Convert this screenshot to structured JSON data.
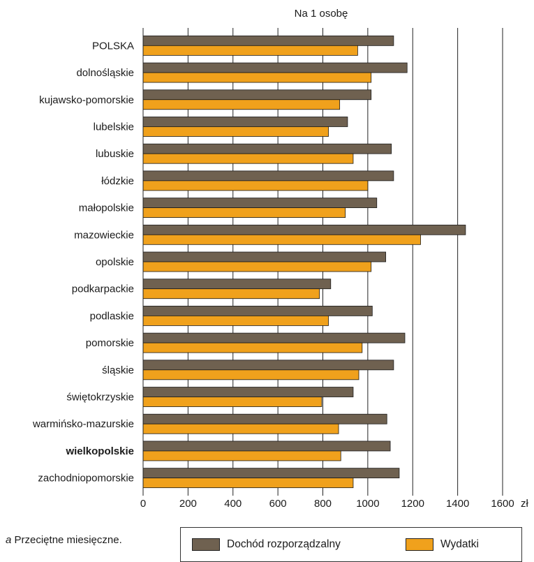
{
  "chart_data": {
    "type": "bar",
    "orientation": "horizontal",
    "title": "Na 1 osobę",
    "unit": "zł",
    "xlim": [
      0,
      1600
    ],
    "xticks": [
      0,
      200,
      400,
      600,
      800,
      1000,
      1200,
      1400,
      1600
    ],
    "grid": true,
    "legend_position": "bottom",
    "categories": [
      "POLSKA",
      "dolnośląskie",
      "kujawsko-pomorskie",
      "lubelskie",
      "lubuskie",
      "łódzkie",
      "małopolskie",
      "mazowieckie",
      "opolskie",
      "podkarpackie",
      "podlaskie",
      "pomorskie",
      "śląskie",
      "świętokrzyskie",
      "warmińsko-mazurskie",
      "wielkopolskie",
      "zachodniopomorskie"
    ],
    "highlighted_category": "wielkopolskie",
    "series": [
      {
        "name": "Dochód rozporządzalny",
        "color": "#6f6150",
        "values": [
          1115,
          1175,
          1015,
          910,
          1105,
          1115,
          1040,
          1435,
          1080,
          835,
          1020,
          1165,
          1115,
          935,
          1085,
          1100,
          1140
        ]
      },
      {
        "name": "Wydatki",
        "color": "#f0a11c",
        "values": [
          955,
          1015,
          875,
          825,
          935,
          1000,
          900,
          1235,
          1015,
          785,
          825,
          975,
          960,
          795,
          870,
          880,
          935
        ]
      }
    ]
  },
  "footnote": {
    "marker": "a",
    "text": " Przeciętne miesięczne."
  }
}
